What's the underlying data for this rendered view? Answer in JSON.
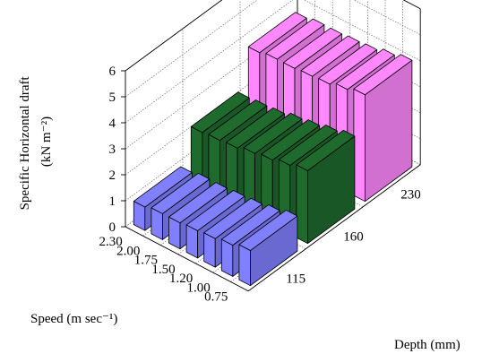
{
  "chart_data": {
    "type": "bar3d",
    "zlabel_line1": "Specific Horizontal draft",
    "zlabel_line2": "(kN m⁻²)",
    "xlabel": "Speed (m sec⁻¹)",
    "ylabel": "Depth (mm)",
    "zlim": [
      0,
      6
    ],
    "z_ticks": [
      "0",
      "1",
      "2",
      "3",
      "4",
      "5",
      "6"
    ],
    "grid": true,
    "speeds": [
      "2.30",
      "2.00",
      "1.75",
      "1.50",
      "1.20",
      "1.00",
      "0.75"
    ],
    "depths": [
      "115",
      "160",
      "230"
    ],
    "series": [
      {
        "depth": "115",
        "color": "#8080ff",
        "values": [
          0.9,
          1.0,
          1.0,
          1.05,
          1.1,
          1.2,
          1.35
        ]
      },
      {
        "depth": "160",
        "color": "#1f6b2e",
        "values": [
          2.15,
          2.2,
          2.25,
          2.4,
          2.5,
          2.65,
          2.8
        ]
      },
      {
        "depth": "230",
        "color": "#ff88ff",
        "values": [
          3.6,
          3.7,
          3.7,
          3.75,
          3.8,
          3.95,
          4.1
        ]
      }
    ]
  }
}
